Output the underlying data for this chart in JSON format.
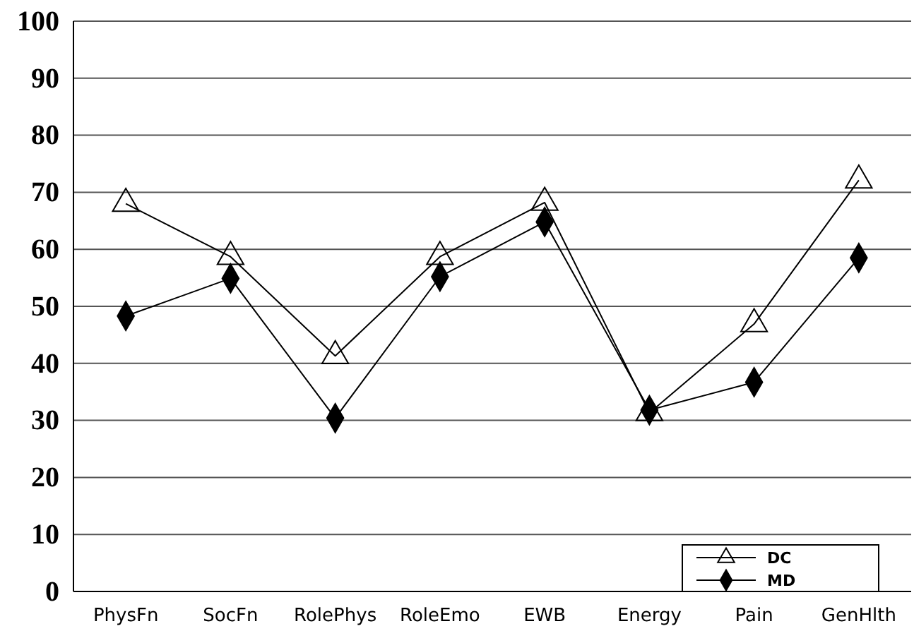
{
  "chart_data": {
    "type": "line",
    "categories": [
      "PhysFn",
      "SocFn",
      "RolePhys",
      "RoleEmo",
      "EWB",
      "Energy",
      "Pain",
      "GenHlth"
    ],
    "series": [
      {
        "name": "DC",
        "color": "#000000",
        "marker": "triangle",
        "values": [
          68,
          58.7,
          41.3,
          58.7,
          68.2,
          31.3,
          46.9,
          72.1
        ]
      },
      {
        "name": "MD",
        "color": "#000000",
        "marker": "diamond",
        "values": [
          48.3,
          54.9,
          30.4,
          55.2,
          64.8,
          31.8,
          36.7,
          58.5
        ]
      }
    ],
    "ylim": [
      0,
      100
    ],
    "yticks": [
      0,
      10,
      20,
      30,
      40,
      50,
      60,
      70,
      80,
      90,
      100
    ],
    "grid": "y",
    "legend": "bottom right"
  }
}
